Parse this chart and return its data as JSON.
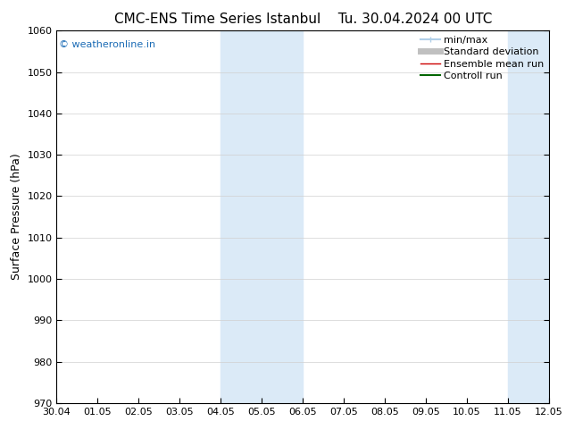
{
  "title": "CMC-ENS Time Series Istanbul",
  "title2": "Tu. 30.04.2024 00 UTC",
  "ylabel": "Surface Pressure (hPa)",
  "ylim": [
    970,
    1060
  ],
  "yticks": [
    970,
    980,
    990,
    1000,
    1010,
    1020,
    1030,
    1040,
    1050,
    1060
  ],
  "xtick_labels": [
    "30.04",
    "01.05",
    "02.05",
    "03.05",
    "04.05",
    "05.05",
    "06.05",
    "07.05",
    "08.05",
    "09.05",
    "10.05",
    "11.05",
    "12.05"
  ],
  "shaded_color": "#dbeaf7",
  "shaded_bands": [
    {
      "xstart": 4,
      "xend": 6
    },
    {
      "xstart": 11,
      "xend": 12
    }
  ],
  "watermark": "© weatheronline.in",
  "watermark_color": "#1a6bb5",
  "background_color": "#ffffff",
  "legend_entries": [
    {
      "label": "min/max",
      "color": "#b0cfe8",
      "lw": 1.5
    },
    {
      "label": "Standard deviation",
      "color": "#c0c0c0",
      "lw": 5
    },
    {
      "label": "Ensemble mean run",
      "color": "#cc0000",
      "lw": 1
    },
    {
      "label": "Controll run",
      "color": "#006600",
      "lw": 1.5
    }
  ],
  "title_fontsize": 11,
  "ylabel_fontsize": 9,
  "tick_fontsize": 8,
  "watermark_fontsize": 8,
  "legend_fontsize": 8
}
